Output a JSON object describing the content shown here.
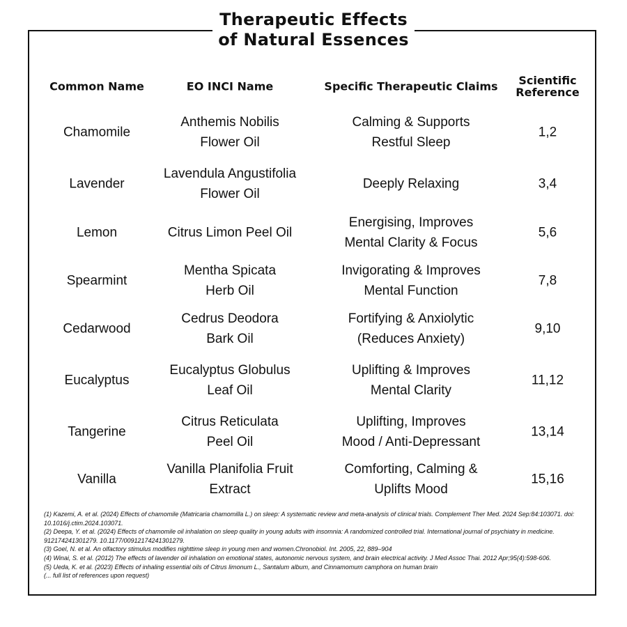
{
  "header": {
    "title": [
      "Therapeutic Effects",
      "of Natural Essences"
    ]
  },
  "table": {
    "columns": [
      [
        "Common Name"
      ],
      [
        "EO INCI Name"
      ],
      [
        "Specific Therapeutic Claims"
      ],
      [
        "Scientific",
        "Reference"
      ]
    ],
    "rows": [
      [
        [
          "Chamomile"
        ],
        [
          "Anthemis Nobilis",
          "Flower Oil"
        ],
        [
          "Calming & Supports",
          "Restful Sleep"
        ],
        [
          "1,2"
        ]
      ],
      [
        [
          "Lavender"
        ],
        [
          "Lavendula Angustifolia",
          "Flower Oil"
        ],
        [
          "Deeply Relaxing"
        ],
        [
          "3,4"
        ]
      ],
      [
        [
          "Lemon"
        ],
        [
          "Citrus Limon Peel Oil"
        ],
        [
          "Energising, Improves",
          "Mental Clarity & Focus"
        ],
        [
          "5,6"
        ]
      ],
      [
        [
          "Spearmint"
        ],
        [
          "Mentha Spicata",
          "Herb Oil"
        ],
        [
          "Invigorating & Improves",
          "Mental Function"
        ],
        [
          "7,8"
        ]
      ],
      [
        [
          "Cedarwood"
        ],
        [
          "Cedrus Deodora",
          "Bark Oil"
        ],
        [
          "Fortifying & Anxiolytic",
          "(Reduces Anxiety)"
        ],
        [
          "9,10"
        ]
      ],
      [
        [
          "Eucalyptus"
        ],
        [
          "Eucalyptus Globulus",
          "Leaf Oil"
        ],
        [
          "Uplifting & Improves",
          "Mental Clarity"
        ],
        [
          "11,12"
        ]
      ],
      [
        [
          "Tangerine"
        ],
        [
          "Citrus Reticulata",
          "Peel Oil"
        ],
        [
          "Uplifting, Improves",
          "Mood / Anti-Depressant"
        ],
        [
          "13,14"
        ]
      ],
      [
        [
          "Vanilla"
        ],
        [
          "Vanilla Planifolia Fruit",
          "Extract"
        ],
        [
          "Comforting, Calming &",
          "Uplifts Mood"
        ],
        [
          "15,16"
        ]
      ]
    ]
  },
  "references": [
    "(1) Kazemi, A. et al.  (2024) Effects of chamomile (Matricaria chamomilla L.) on sleep: A systematic review and meta-analysis of clinical trials. Complement Ther Med. 2024 Sep:84:103071. doi: 10.1016/j.ctim.2024.103071.",
    "(2) Deepa, Y. et al. (2024) Effects of chamomile oil inhalation on sleep quality in young adults with insomnia: A randomized controlled trial. International journal of psychiatry in medicine. 912174241301279. 10.1177/00912174241301279.",
    "(3) Goel, N. et al.  An olfactory stimulus modifies nighttime sleep in young men and women.Chronobiol. Int. 2005, 22, 889–904",
    "(4)  Winai, S. et al. (2012) The effects of lavender oil inhalation on emotional states, autonomic nervous system, and brain electrical activity. J Med Assoc Thai. 2012 Apr;95(4):598-606.",
    "(5) Ueda, K. et al. (2023) Effects of inhaling essential oils of Citrus limonum L., Santalum album, and Cinnamomum camphora on human brain",
    "(... full list of references upon request)"
  ]
}
